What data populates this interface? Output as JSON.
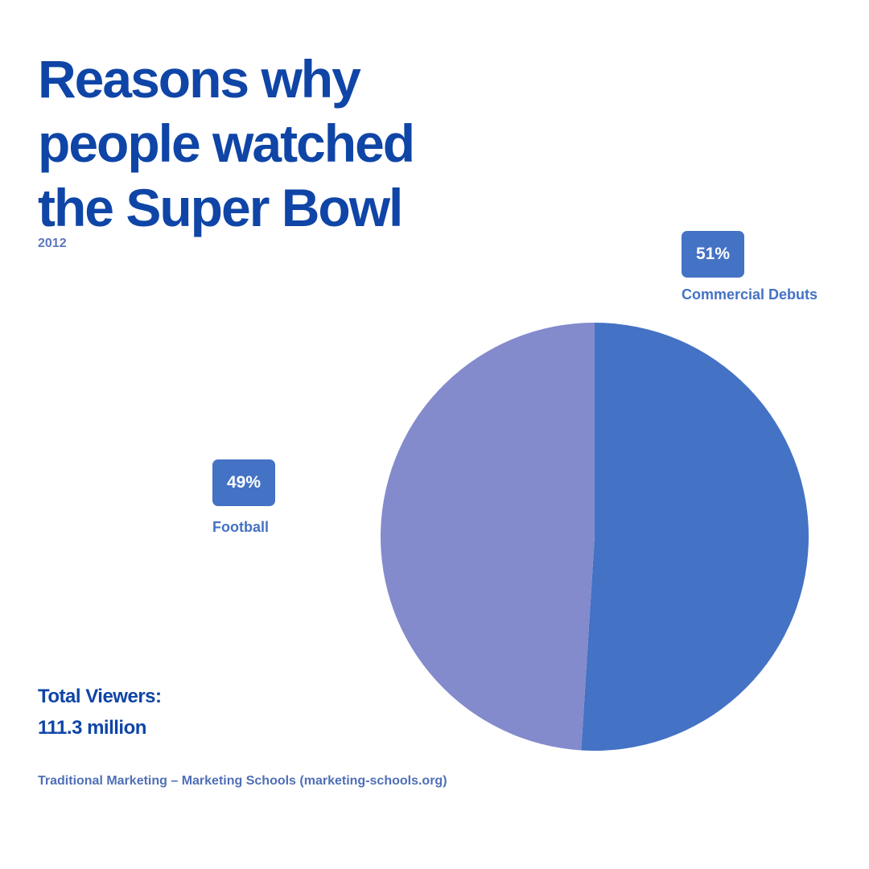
{
  "chart_data": {
    "type": "pie",
    "title": [
      "Reasons why",
      "people watched",
      "the Super Bowl"
    ],
    "subtitle": "2012",
    "slices": [
      {
        "label": "Commercial Debuts",
        "value": 51,
        "display": "51%",
        "color": "#4472c4"
      },
      {
        "label": "Football",
        "value": 49,
        "display": "49%",
        "color": "#838bcc"
      }
    ],
    "start_angle_deg": 0,
    "direction": "clockwise"
  },
  "summary": {
    "total_label": "Total Viewers:",
    "total_value": "111.3 million"
  },
  "source": "Traditional Marketing – Marketing Schools (marketing-schools.org)",
  "colors": {
    "title": "#0f45a6",
    "subtitle": "#5c77bf",
    "badge": "#4472c4",
    "label": "#4472c4",
    "source": "#4f6fb7"
  }
}
